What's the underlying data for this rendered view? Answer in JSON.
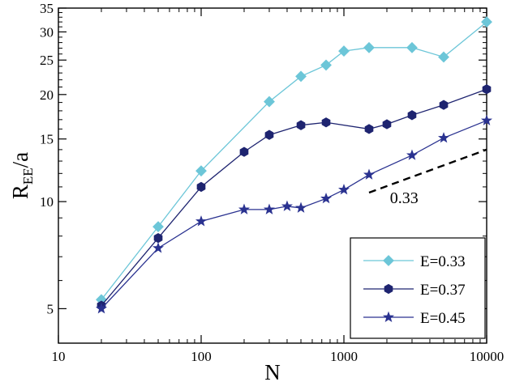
{
  "chart_data": {
    "type": "line",
    "xscale": "log",
    "yscale": "log",
    "xlim": [
      10,
      10000
    ],
    "ylim": [
      4,
      35
    ],
    "xlabel": "N",
    "ylabel_main": "R",
    "ylabel_sub": "EE",
    "ylabel_tail": "/a",
    "x_ticks": [
      10,
      100,
      1000,
      10000
    ],
    "x_tick_labels": [
      "10",
      "100",
      "1000",
      "10000"
    ],
    "y_ticks": [
      5,
      10,
      15,
      20,
      25,
      30,
      35
    ],
    "y_tick_labels": [
      "5",
      "10",
      "15",
      "20",
      "25",
      "30",
      "35"
    ],
    "grid": false,
    "legend_position": "bottom-right",
    "series": [
      {
        "name": "E=0.33",
        "color": "#6cc6d8",
        "marker": "diamond",
        "x": [
          20,
          50,
          100,
          300,
          500,
          750,
          1000,
          1500,
          3000,
          5000,
          10000
        ],
        "y": [
          5.3,
          8.5,
          12.2,
          19.1,
          22.5,
          24.2,
          26.5,
          27.1,
          27.1,
          25.5,
          32.0
        ]
      },
      {
        "name": "E=0.37",
        "color": "#1e2470",
        "marker": "hexagon",
        "x": [
          20,
          50,
          100,
          200,
          300,
          500,
          750,
          1500,
          2000,
          3000,
          5000,
          10000
        ],
        "y": [
          5.1,
          7.9,
          11.0,
          13.8,
          15.4,
          16.4,
          16.7,
          16.0,
          16.5,
          17.5,
          18.7,
          20.7
        ]
      },
      {
        "name": "E=0.45",
        "color": "#2a3290",
        "marker": "star",
        "x": [
          20,
          50,
          100,
          200,
          300,
          400,
          500,
          750,
          1000,
          1500,
          3000,
          5000,
          10000
        ],
        "y": [
          5.0,
          7.4,
          8.8,
          9.5,
          9.5,
          9.7,
          9.6,
          10.2,
          10.8,
          11.9,
          13.5,
          15.1,
          16.9
        ]
      }
    ],
    "annotations": [
      {
        "type": "dashed-line",
        "label": "0.33",
        "x": [
          1500,
          10000
        ],
        "y": [
          10.6,
          14.0
        ]
      }
    ]
  }
}
